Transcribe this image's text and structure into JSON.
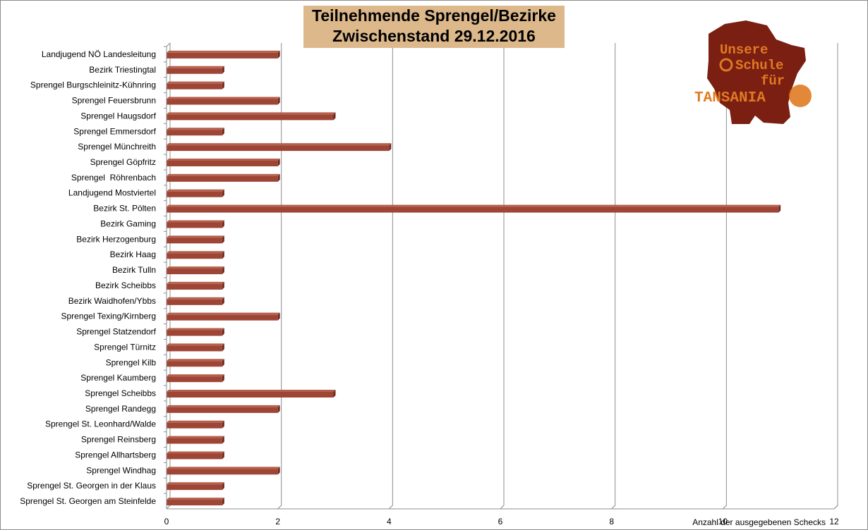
{
  "title": {
    "line1": "Teilnehmende Sprengel/Bezirke",
    "line2": "Zwischenstand 29.12.2016"
  },
  "logo": {
    "line1": "Unsere",
    "line2": "Schule",
    "line3": "für",
    "line4": "TANSANIA",
    "colors": {
      "map": "#7a1f12",
      "text": "#e07a22",
      "sun": "#e07a22"
    }
  },
  "colors": {
    "bar": "#9e4535",
    "bar_top": "#b4604c",
    "bar_dark": "#6e2a1e",
    "grid": "#8c8c8c",
    "title_bg": "#dcb88b"
  },
  "chart_data": {
    "type": "bar",
    "orientation": "horizontal",
    "title": "Teilnehmende Sprengel/Bezirke Zwischenstand 29.12.2016",
    "xlabel": "Anzahl der ausgegebenen Schecks",
    "ylabel": "",
    "xlim": [
      0,
      12
    ],
    "xticks": [
      0,
      2,
      4,
      6,
      8,
      10,
      12
    ],
    "grid": "vertical",
    "categories": [
      "Landjugend NÖ Landesleitung",
      "Bezirk Triestingtal",
      "Sprengel Burgschleinitz-Kühnring",
      "Sprengel Feuersbrunn",
      "Sprengel Haugsdorf",
      "Sprengel Emmersdorf",
      "Sprengel Münchreith",
      "Sprengel Göpfritz",
      "Sprengel  Röhrenbach",
      "Landjugend Mostviertel",
      "Bezirk St. Pölten",
      "Bezirk Gaming",
      "Bezirk Herzogenburg",
      "Bezirk Haag",
      "Bezirk Tulln",
      "Bezirk Scheibbs",
      "Bezirk Waidhofen/Ybbs",
      "Sprengel Texing/Kirnberg",
      "Sprengel Statzendorf",
      "Sprengel Türnitz",
      "Sprengel Kilb",
      "Sprengel Kaumberg",
      "Sprengel Scheibbs",
      "Sprengel Randegg",
      "Sprengel St. Leonhard/Walde",
      "Sprengel Reinsberg",
      "Sprengel Allhartsberg",
      "Sprengel Windhag",
      "Sprengel St. Georgen in der Klaus",
      "Sprengel St. Georgen am Steinfelde"
    ],
    "values": [
      2,
      1,
      1,
      2,
      3,
      1,
      4,
      2,
      2,
      1,
      11,
      1,
      1,
      1,
      1,
      1,
      1,
      2,
      1,
      1,
      1,
      1,
      3,
      2,
      1,
      1,
      1,
      2,
      1,
      1
    ]
  }
}
